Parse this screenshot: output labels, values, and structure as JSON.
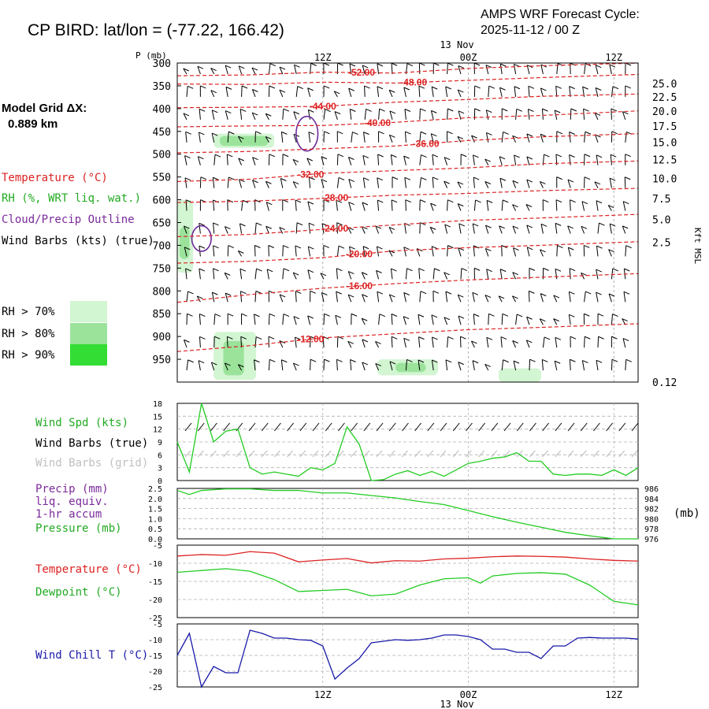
{
  "header": {
    "station_title": "CP BIRD:  lat/lon = (-77.22, 166.42)",
    "cycle_line1": "AMPS WRF Forecast Cycle:",
    "cycle_line2": "2025-11-12 / 00  Z"
  },
  "time_axis": {
    "top_day_label": "13 Nov",
    "bottom_day_label": "13 Nov",
    "ticks": [
      {
        "label": "12Z",
        "hour": 12
      },
      {
        "label": "00Z",
        "hour": 24
      },
      {
        "label": "12Z",
        "hour": 36
      }
    ],
    "hour_range": [
      0,
      38
    ]
  },
  "side_panel": {
    "model_grid_label": "Model Grid ΔX:",
    "model_grid_value": "0.889 km",
    "legend_items": [
      {
        "text": "Temperature (°C)",
        "color": "#dd2222"
      },
      {
        "text": "RH (%, WRT liq. wat.)",
        "color": "#22aa22"
      },
      {
        "text": "Cloud/Precip Outline",
        "color": "#7a2a9a"
      },
      {
        "text": "Wind Barbs (kts) (true)",
        "color": "#000000"
      }
    ],
    "rh_legend": [
      {
        "text": "RH > 70%",
        "color": "#d2f5d2"
      },
      {
        "text": "RH > 80%",
        "color": "#9be39b"
      },
      {
        "text": "RH > 90%",
        "color": "#33dd33"
      }
    ]
  },
  "colors": {
    "temperature": "#dd2222",
    "dewpoint": "#22cc22",
    "windchill": "#1a1aaa",
    "pressure": "#22cc22",
    "windspeed": "#22cc22",
    "cloud_outline": "#6a2a9a",
    "grid": "#b0b0b0",
    "rh70": "#d2f5d2",
    "rh80": "#9be39b",
    "rh90": "#33dd33"
  },
  "chart_data": [
    {
      "type": "heatmap",
      "id": "cross-section",
      "xlabel": "",
      "ylabel": "P (mb)",
      "ylabel_right": "Kft MSL",
      "y_pressure_ticks": [
        300,
        350,
        400,
        450,
        500,
        550,
        600,
        650,
        700,
        750,
        800,
        850,
        900,
        950
      ],
      "ylim_pressure": [
        300,
        1000
      ],
      "kft_ticks": [
        {
          "label": "25.0",
          "p": 345
        },
        {
          "label": "22.5",
          "p": 374
        },
        {
          "label": "20.0",
          "p": 405
        },
        {
          "label": "17.5",
          "p": 438
        },
        {
          "label": "15.0",
          "p": 474
        },
        {
          "label": "12.5",
          "p": 512
        },
        {
          "label": "10.0",
          "p": 553
        },
        {
          "label": "7.5",
          "p": 597
        },
        {
          "label": "5.0",
          "p": 643
        },
        {
          "label": "2.5",
          "p": 693
        },
        {
          "label": "0.12",
          "p": 1000
        }
      ],
      "isotherms": [
        {
          "label": "-52.00",
          "label_hour": 15.2,
          "points": [
            [
              0,
              328
            ],
            [
              6,
              326
            ],
            [
              12,
              320
            ],
            [
              18,
              322
            ],
            [
              24,
              312
            ],
            [
              30,
              306
            ],
            [
              38,
              300
            ]
          ]
        },
        {
          "label": "-48.00",
          "label_hour": 19.5,
          "points": [
            [
              0,
              346
            ],
            [
              6,
              347
            ],
            [
              12,
              342
            ],
            [
              18,
              344
            ],
            [
              24,
              338
            ],
            [
              30,
              332
            ],
            [
              38,
              325
            ]
          ]
        },
        {
          "label": "-44.00",
          "label_hour": 12.0,
          "points": [
            [
              0,
              398
            ],
            [
              6,
              397
            ],
            [
              12,
              395
            ],
            [
              18,
              386
            ],
            [
              24,
              380
            ],
            [
              30,
              373
            ],
            [
              38,
              368
            ]
          ]
        },
        {
          "label": "-40.00",
          "label_hour": 16.5,
          "points": [
            [
              0,
              440
            ],
            [
              6,
              438
            ],
            [
              12,
              437
            ],
            [
              18,
              430
            ],
            [
              24,
              420
            ],
            [
              30,
              415
            ],
            [
              38,
              405
            ]
          ]
        },
        {
          "label": "-36.00",
          "label_hour": 20.5,
          "points": [
            [
              0,
              497
            ],
            [
              6,
              494
            ],
            [
              12,
              488
            ],
            [
              18,
              482
            ],
            [
              24,
              470
            ],
            [
              30,
              462
            ],
            [
              38,
              455
            ]
          ]
        },
        {
          "label": "-32.00",
          "label_hour": 11.0,
          "points": [
            [
              0,
              560
            ],
            [
              6,
              555
            ],
            [
              12,
              542
            ],
            [
              18,
              536
            ],
            [
              24,
              530
            ],
            [
              30,
              521
            ],
            [
              38,
              515
            ]
          ]
        },
        {
          "label": "-28.00",
          "label_hour": 13.0,
          "points": [
            [
              0,
              606
            ],
            [
              6,
              603
            ],
            [
              12,
              597
            ],
            [
              18,
              590
            ],
            [
              24,
              586
            ],
            [
              30,
              580
            ],
            [
              38,
              575
            ]
          ]
        },
        {
          "label": "-24.00",
          "label_hour": 13.0,
          "points": [
            [
              0,
              681
            ],
            [
              6,
              676
            ],
            [
              12,
              665
            ],
            [
              18,
              655
            ],
            [
              24,
              645
            ],
            [
              30,
              640
            ],
            [
              38,
              632
            ]
          ]
        },
        {
          "label": "-20.00",
          "label_hour": 15.0,
          "points": [
            [
              0,
              739
            ],
            [
              6,
              735
            ],
            [
              12,
              727
            ],
            [
              18,
              712
            ],
            [
              24,
              705
            ],
            [
              30,
              700
            ],
            [
              38,
              692
            ]
          ]
        },
        {
          "label": "-16.00",
          "label_hour": 15.0,
          "points": [
            [
              0,
              825
            ],
            [
              6,
              808
            ],
            [
              12,
              794
            ],
            [
              18,
              784
            ],
            [
              24,
              776
            ],
            [
              30,
              770
            ],
            [
              38,
              762
            ]
          ]
        },
        {
          "label": "-12.00",
          "label_hour": 11.0,
          "points": [
            [
              0,
              933
            ],
            [
              6,
              920
            ],
            [
              12,
              903
            ],
            [
              18,
              894
            ],
            [
              24,
              885
            ],
            [
              30,
              880
            ],
            [
              38,
              872
            ]
          ]
        }
      ],
      "rh_regions": [
        {
          "level": "rh70",
          "hours": [
            3,
            8
          ],
          "p": [
            455,
            486
          ]
        },
        {
          "level": "rh80",
          "hours": [
            3.5,
            7.5
          ],
          "p": [
            460,
            482
          ]
        },
        {
          "level": "rh70",
          "hours": [
            0,
            1.3
          ],
          "p": [
            600,
            760
          ]
        },
        {
          "level": "rh80",
          "hours": [
            0.2,
            1
          ],
          "p": [
            660,
            730
          ]
        },
        {
          "level": "rh70",
          "hours": [
            3,
            6.5
          ],
          "p": [
            890,
            995
          ]
        },
        {
          "level": "rh80",
          "hours": [
            3.8,
            5.5
          ],
          "p": [
            910,
            985
          ]
        },
        {
          "level": "rh70",
          "hours": [
            16.5,
            21.5
          ],
          "p": [
            950,
            985
          ]
        },
        {
          "level": "rh80",
          "hours": [
            18,
            20.5
          ],
          "p": [
            958,
            978
          ]
        },
        {
          "level": "rh70",
          "hours": [
            26.5,
            30
          ],
          "p": [
            970,
            1000
          ]
        }
      ],
      "cloud_outlines": [
        {
          "center_hour": 10.7,
          "center_p": 455,
          "hours_halfwidth": 0.9,
          "p_halfwidth": 38
        },
        {
          "center_hour": 2.0,
          "center_p": 685,
          "hours_halfwidth": 0.8,
          "p_halfwidth": 28
        }
      ]
    },
    {
      "type": "line",
      "id": "wind-speed",
      "series_name": "Wind Spd (kts)",
      "labels_extra": [
        "Wind Barbs (true)",
        "Wind Barbs (grid)"
      ],
      "ylim": [
        0,
        18
      ],
      "y_ticks": [
        0,
        3,
        6,
        9,
        12,
        15,
        18
      ],
      "x": [
        0,
        1,
        2,
        3,
        4,
        5,
        6,
        7,
        8,
        9,
        10,
        11,
        12,
        13,
        14,
        15,
        16,
        17,
        18,
        19,
        20,
        21,
        22,
        23,
        24,
        25,
        26,
        27,
        28,
        29,
        30,
        31,
        32,
        33,
        34,
        35,
        36,
        37,
        38
      ],
      "values": [
        9,
        2,
        18,
        9,
        11.5,
        12,
        3,
        1.5,
        2,
        1.5,
        1,
        3,
        2.5,
        4,
        12.5,
        8.5,
        0,
        0.2,
        1.5,
        2.3,
        1.2,
        2.1,
        1,
        2.5,
        4,
        4.5,
        5.2,
        5.5,
        6.5,
        4.5,
        4.5,
        1.5,
        1.2,
        1.5,
        1.5,
        1.2,
        2.5,
        1.2,
        3
      ]
    },
    {
      "type": "line",
      "id": "pressure",
      "series_name": "Pressure (mb)",
      "labels_extra": [
        "Precip (mm)",
        "liq. equiv.",
        "1-hr accum"
      ],
      "y_left_ticks": [
        0.0,
        0.5,
        1.0,
        1.5,
        2.0,
        2.5
      ],
      "y_right_ticks": [
        976,
        978,
        980,
        982,
        984,
        986
      ],
      "y_right_label": "(mb)",
      "ylim": [
        976,
        986
      ],
      "x": [
        0,
        1,
        2,
        4,
        6,
        8,
        10,
        12,
        14,
        16,
        18,
        20,
        22,
        24,
        26,
        28,
        30,
        32,
        34,
        35,
        36,
        38
      ],
      "values": [
        985.6,
        984.8,
        985.6,
        985.9,
        985.9,
        985.6,
        985.6,
        985.1,
        985.1,
        984.6,
        984.1,
        983.4,
        982.8,
        981.6,
        980.4,
        979.3,
        978.3,
        977.3,
        976.6,
        976.3,
        976.0,
        976.0
      ]
    },
    {
      "type": "line",
      "id": "temperature-dewpoint",
      "ylim": [
        -25,
        -5
      ],
      "y_ticks": [
        -25,
        -20,
        -15,
        -10,
        -5
      ],
      "series": [
        {
          "name": "Temperature (°C)",
          "x": [
            0,
            2,
            4,
            6,
            8,
            10,
            12,
            14,
            16,
            18,
            20,
            22,
            24,
            26,
            28,
            30,
            32,
            34,
            36,
            38
          ],
          "values": [
            -8,
            -7.6,
            -7.8,
            -6.8,
            -7.2,
            -9.6,
            -9.1,
            -8.7,
            -9.9,
            -9.3,
            -9.4,
            -8.8,
            -8.6,
            -8.2,
            -8.0,
            -8.1,
            -8.3,
            -8.8,
            -9.2,
            -9.4
          ]
        },
        {
          "name": "Dewpoint (°C)",
          "x": [
            0,
            2,
            4,
            6,
            8,
            10,
            12,
            14,
            16,
            18,
            20,
            22,
            24,
            25,
            26,
            28,
            30,
            32,
            34,
            36,
            38
          ],
          "values": [
            -12.5,
            -12,
            -11.5,
            -12.2,
            -14.5,
            -17.8,
            -17.5,
            -17.2,
            -19,
            -18.5,
            -16,
            -14.3,
            -14,
            -15.5,
            -13.5,
            -12.8,
            -12.6,
            -13,
            -16,
            -20.5,
            -21.5
          ]
        }
      ]
    },
    {
      "type": "line",
      "id": "wind-chill",
      "series_name": "Wind Chill T (°C)",
      "ylim": [
        -25,
        -5
      ],
      "y_ticks": [
        -25,
        -20,
        -15,
        -10,
        -5
      ],
      "x": [
        0,
        1,
        2,
        3,
        4,
        5,
        6,
        7,
        8,
        9,
        10,
        11,
        12,
        13,
        14,
        15,
        16,
        17,
        18,
        19,
        20,
        21,
        22,
        23,
        24,
        25,
        26,
        27,
        28,
        29,
        30,
        31,
        32,
        33,
        34,
        35,
        36,
        37,
        38
      ],
      "values": [
        -15,
        -8,
        -25,
        -18.5,
        -20.5,
        -20.5,
        -7,
        -8,
        -9.5,
        -9.5,
        -10,
        -10.2,
        -12,
        -22.5,
        -19,
        -16,
        -11,
        -10.5,
        -10,
        -10.2,
        -10,
        -9.5,
        -8.5,
        -8.5,
        -9,
        -10,
        -13,
        -13,
        -14,
        -14,
        -16,
        -12,
        -12,
        -9.5,
        -9.3,
        -9.5,
        -9.5,
        -9.5,
        -9.8
      ]
    }
  ]
}
